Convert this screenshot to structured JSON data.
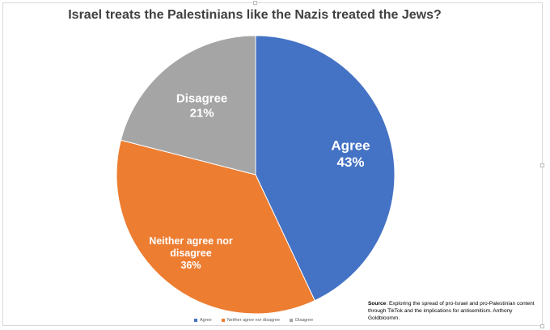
{
  "chart_data": {
    "type": "pie",
    "title": "Israel treats the Palestinians like the Nazis treated the Jews?",
    "slices": [
      {
        "name": "Agree",
        "value": 43,
        "label_lines": [
          "Agree",
          "43%"
        ],
        "color": "#4472c4"
      },
      {
        "name": "Neither agree nor disagree",
        "value": 36,
        "label_lines": [
          "Neither agree nor",
          "disagree",
          "36%"
        ],
        "color": "#ed7d31"
      },
      {
        "name": "Disagree",
        "value": 21,
        "label_lines": [
          "Disagree",
          "21%"
        ],
        "color": "#a5a5a5"
      }
    ],
    "legend": {
      "placement": "bottom",
      "items": [
        "Agree",
        "Neither agree nor disagree",
        "Disagree"
      ]
    }
  },
  "source": {
    "label": "Source",
    "text": ": Exploring the spread of pro-Israel and pro-Palestinian content through TikTok and the implications for antisemitism. Anthony Goldbloomm."
  }
}
